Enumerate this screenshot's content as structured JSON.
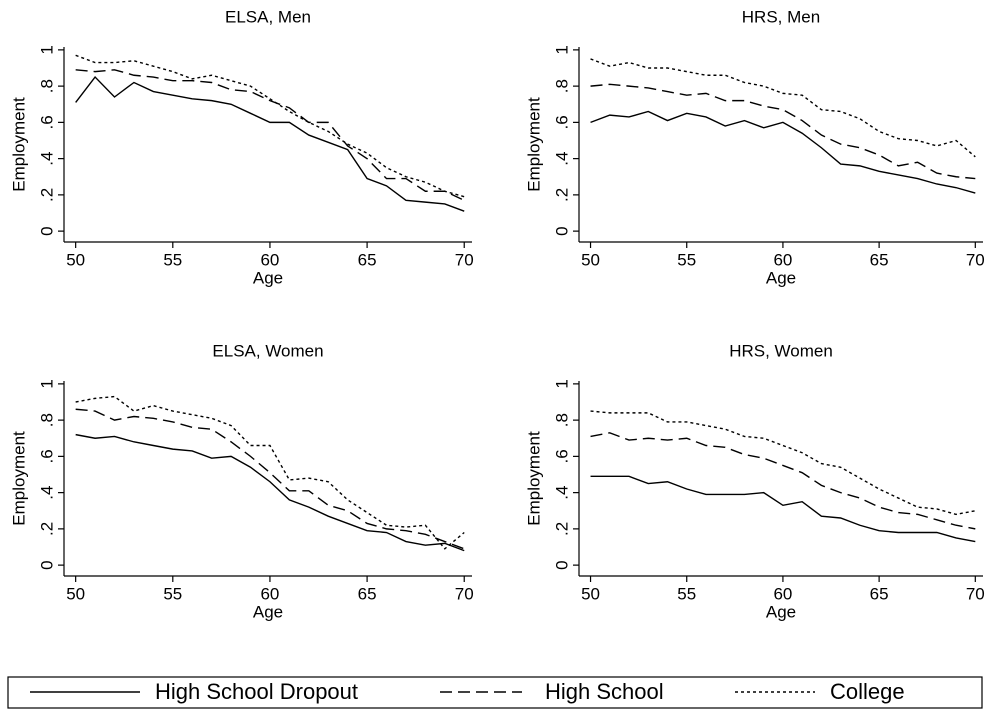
{
  "chart_data": [
    {
      "type": "line",
      "title": "ELSA, Men",
      "xlabel": "Age",
      "ylabel": "Employment",
      "x": [
        50,
        51,
        52,
        53,
        54,
        55,
        56,
        57,
        58,
        59,
        60,
        61,
        62,
        63,
        64,
        65,
        66,
        67,
        68,
        69,
        70
      ],
      "xlim": [
        49.4,
        70.4
      ],
      "ylim": [
        -0.06,
        1.06
      ],
      "xticks": [
        50,
        55,
        60,
        65,
        70
      ],
      "yticks": [
        0,
        {
          "value": 0.2,
          "label": ".2"
        },
        {
          "value": 0.4,
          "label": ".4"
        },
        {
          "value": 0.6,
          "label": ".6"
        },
        {
          "value": 0.8,
          "label": ".8"
        },
        1
      ],
      "series": [
        {
          "name": "High School Dropout",
          "color": "#000000",
          "dash": "solid",
          "values": [
            0.71,
            0.85,
            0.74,
            0.82,
            0.77,
            0.75,
            0.73,
            0.72,
            0.7,
            0.65,
            0.6,
            0.6,
            0.53,
            0.49,
            0.45,
            0.29,
            0.25,
            0.17,
            0.16,
            0.15,
            0.11
          ]
        },
        {
          "name": "High School",
          "color": "#000000",
          "dash": "dash",
          "values": [
            0.89,
            0.88,
            0.89,
            0.86,
            0.85,
            0.83,
            0.83,
            0.82,
            0.78,
            0.77,
            0.72,
            0.68,
            0.6,
            0.6,
            0.47,
            0.4,
            0.29,
            0.29,
            0.22,
            0.22,
            0.17
          ]
        },
        {
          "name": "College",
          "color": "#000000",
          "dash": "dot",
          "values": [
            0.97,
            0.93,
            0.93,
            0.94,
            0.91,
            0.88,
            0.84,
            0.86,
            0.83,
            0.8,
            0.73,
            0.66,
            0.6,
            0.55,
            0.48,
            0.43,
            0.35,
            0.3,
            0.27,
            0.22,
            0.19
          ]
        }
      ]
    },
    {
      "type": "line",
      "title": "HRS, Men",
      "xlabel": "Age",
      "ylabel": "Employment",
      "x": [
        50,
        51,
        52,
        53,
        54,
        55,
        56,
        57,
        58,
        59,
        60,
        61,
        62,
        63,
        64,
        65,
        66,
        67,
        68,
        69,
        70
      ],
      "xlim": [
        49.4,
        70.4
      ],
      "ylim": [
        -0.06,
        1.06
      ],
      "xticks": [
        50,
        55,
        60,
        65,
        70
      ],
      "yticks": [
        0,
        {
          "value": 0.2,
          "label": ".2"
        },
        {
          "value": 0.4,
          "label": ".4"
        },
        {
          "value": 0.6,
          "label": ".6"
        },
        {
          "value": 0.8,
          "label": ".8"
        },
        1
      ],
      "series": [
        {
          "name": "High School Dropout",
          "color": "#000000",
          "dash": "solid",
          "values": [
            0.6,
            0.64,
            0.63,
            0.66,
            0.61,
            0.65,
            0.63,
            0.58,
            0.61,
            0.57,
            0.6,
            0.54,
            0.46,
            0.37,
            0.36,
            0.33,
            0.31,
            0.29,
            0.26,
            0.24,
            0.21
          ]
        },
        {
          "name": "High School",
          "color": "#000000",
          "dash": "dash",
          "values": [
            0.8,
            0.81,
            0.8,
            0.79,
            0.77,
            0.75,
            0.76,
            0.72,
            0.72,
            0.69,
            0.67,
            0.61,
            0.53,
            0.48,
            0.46,
            0.42,
            0.36,
            0.38,
            0.32,
            0.3,
            0.29
          ]
        },
        {
          "name": "College",
          "color": "#000000",
          "dash": "dot",
          "values": [
            0.95,
            0.91,
            0.93,
            0.9,
            0.9,
            0.88,
            0.86,
            0.86,
            0.82,
            0.8,
            0.76,
            0.75,
            0.67,
            0.66,
            0.62,
            0.55,
            0.51,
            0.5,
            0.47,
            0.5,
            0.41
          ]
        }
      ]
    },
    {
      "type": "line",
      "title": "ELSA, Women",
      "xlabel": "Age",
      "ylabel": "Employment",
      "x": [
        50,
        51,
        52,
        53,
        54,
        55,
        56,
        57,
        58,
        59,
        60,
        61,
        62,
        63,
        64,
        65,
        66,
        67,
        68,
        69,
        70
      ],
      "xlim": [
        49.4,
        70.4
      ],
      "ylim": [
        -0.06,
        1.06
      ],
      "xticks": [
        50,
        55,
        60,
        65,
        70
      ],
      "yticks": [
        0,
        {
          "value": 0.2,
          "label": ".2"
        },
        {
          "value": 0.4,
          "label": ".4"
        },
        {
          "value": 0.6,
          "label": ".6"
        },
        {
          "value": 0.8,
          "label": ".8"
        },
        1
      ],
      "series": [
        {
          "name": "High School Dropout",
          "color": "#000000",
          "dash": "solid",
          "values": [
            0.72,
            0.7,
            0.71,
            0.68,
            0.66,
            0.64,
            0.63,
            0.59,
            0.6,
            0.54,
            0.46,
            0.36,
            0.32,
            0.27,
            0.23,
            0.19,
            0.18,
            0.13,
            0.11,
            0.12,
            0.08
          ]
        },
        {
          "name": "High School",
          "color": "#000000",
          "dash": "dash",
          "values": [
            0.86,
            0.85,
            0.8,
            0.82,
            0.81,
            0.79,
            0.76,
            0.75,
            0.68,
            0.6,
            0.51,
            0.41,
            0.41,
            0.33,
            0.3,
            0.23,
            0.2,
            0.19,
            0.17,
            0.13,
            0.09
          ]
        },
        {
          "name": "College",
          "color": "#000000",
          "dash": "dot",
          "values": [
            0.9,
            0.92,
            0.93,
            0.85,
            0.88,
            0.85,
            0.83,
            0.81,
            0.77,
            0.66,
            0.66,
            0.47,
            0.48,
            0.46,
            0.36,
            0.29,
            0.22,
            0.21,
            0.22,
            0.09,
            0.18
          ]
        }
      ]
    },
    {
      "type": "line",
      "title": "HRS, Women",
      "xlabel": "Age",
      "ylabel": "Employment",
      "x": [
        50,
        51,
        52,
        53,
        54,
        55,
        56,
        57,
        58,
        59,
        60,
        61,
        62,
        63,
        64,
        65,
        66,
        67,
        68,
        69,
        70
      ],
      "xlim": [
        49.4,
        70.4
      ],
      "ylim": [
        -0.06,
        1.06
      ],
      "xticks": [
        50,
        55,
        60,
        65,
        70
      ],
      "yticks": [
        0,
        {
          "value": 0.2,
          "label": ".2"
        },
        {
          "value": 0.4,
          "label": ".4"
        },
        {
          "value": 0.6,
          "label": ".6"
        },
        {
          "value": 0.8,
          "label": ".8"
        },
        1
      ],
      "series": [
        {
          "name": "High School Dropout",
          "color": "#000000",
          "dash": "solid",
          "values": [
            0.49,
            0.49,
            0.49,
            0.45,
            0.46,
            0.42,
            0.39,
            0.39,
            0.39,
            0.4,
            0.33,
            0.35,
            0.27,
            0.26,
            0.22,
            0.19,
            0.18,
            0.18,
            0.18,
            0.15,
            0.13
          ]
        },
        {
          "name": "High School",
          "color": "#000000",
          "dash": "dash",
          "values": [
            0.71,
            0.73,
            0.69,
            0.7,
            0.69,
            0.7,
            0.66,
            0.65,
            0.61,
            0.59,
            0.55,
            0.51,
            0.44,
            0.4,
            0.37,
            0.32,
            0.29,
            0.28,
            0.25,
            0.22,
            0.2
          ]
        },
        {
          "name": "College",
          "color": "#000000",
          "dash": "dot",
          "values": [
            0.85,
            0.84,
            0.84,
            0.84,
            0.79,
            0.79,
            0.77,
            0.75,
            0.71,
            0.7,
            0.66,
            0.62,
            0.56,
            0.54,
            0.48,
            0.42,
            0.37,
            0.32,
            0.31,
            0.28,
            0.3
          ]
        }
      ]
    }
  ]
}
